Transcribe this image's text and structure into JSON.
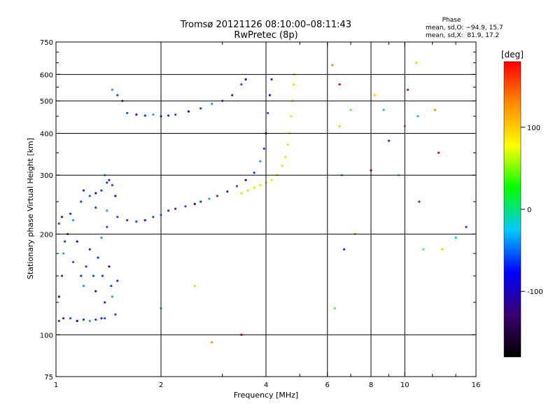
{
  "chart_data": {
    "type": "scatter",
    "title": "Tromsø 20121126 08:10:00–08:11:43",
    "subtitle": "RwPretec (8p)",
    "xlabel": "Frequency [MHz]",
    "ylabel": "Stationary phase Virtual Height [km]",
    "x_scale": "log",
    "y_scale": "log",
    "xlim": [
      1,
      16
    ],
    "ylim": [
      75,
      750
    ],
    "x_ticks": [
      1,
      2,
      4,
      6,
      8,
      10,
      16
    ],
    "y_ticks": [
      75,
      100,
      200,
      300,
      400,
      500,
      600,
      750
    ],
    "x_gridlines": [
      2,
      4,
      6,
      8,
      10
    ],
    "y_gridlines": [
      100,
      200,
      300,
      400,
      500,
      600
    ],
    "stats": {
      "heading": "Phase",
      "line_o": "mean, sd,O: −94.9, 15.7",
      "line_x": "mean, sd,X:  81.9, 17.2"
    },
    "colorbar": {
      "label": "[deg]",
      "min": -180,
      "max": 180,
      "ticks": [
        100,
        0,
        -100
      ],
      "colors": [
        "#000000",
        "#3a006e",
        "#0000ff",
        "#00c8ff",
        "#00ff00",
        "#ffff00",
        "#ff8c00",
        "#ff0000"
      ]
    },
    "series": [
      {
        "values": [
          [
            1.02,
            110
          ],
          [
            1.05,
            112
          ],
          [
            1.1,
            112
          ],
          [
            1.15,
            110
          ],
          [
            1.2,
            111
          ],
          [
            1.25,
            110
          ],
          [
            1.3,
            111
          ],
          [
            1.35,
            112
          ],
          [
            1.38,
            112
          ],
          [
            1.02,
            130
          ],
          [
            1.04,
            150
          ],
          [
            1.05,
            175
          ],
          [
            1.06,
            190
          ],
          [
            1.08,
            200
          ],
          [
            1.12,
            165
          ],
          [
            1.15,
            190
          ],
          [
            1.18,
            150
          ],
          [
            1.2,
            140
          ],
          [
            1.22,
            160
          ],
          [
            1.25,
            180
          ],
          [
            1.28,
            150
          ],
          [
            1.3,
            135
          ],
          [
            1.32,
            170
          ],
          [
            1.35,
            195
          ],
          [
            1.36,
            150
          ],
          [
            1.38,
            125
          ],
          [
            1.4,
            210
          ],
          [
            1.42,
            160
          ],
          [
            1.44,
            140
          ],
          [
            1.45,
            130
          ],
          [
            1.48,
            115
          ],
          [
            1.5,
            145
          ],
          [
            1.02,
            215
          ],
          [
            1.04,
            225
          ],
          [
            1.1,
            230
          ],
          [
            1.12,
            220
          ],
          [
            1.18,
            250
          ],
          [
            1.2,
            270
          ],
          [
            1.25,
            260
          ],
          [
            1.3,
            265
          ],
          [
            1.35,
            270
          ],
          [
            1.38,
            300
          ],
          [
            1.4,
            285
          ],
          [
            1.42,
            290
          ],
          [
            1.45,
            280
          ],
          [
            1.48,
            260
          ],
          [
            1.3,
            240
          ],
          [
            1.4,
            235
          ],
          [
            1.5,
            225
          ],
          [
            1.6,
            220
          ],
          [
            1.7,
            218
          ],
          [
            1.8,
            220
          ],
          [
            1.9,
            225
          ],
          [
            2.0,
            228
          ],
          [
            2.1,
            235
          ],
          [
            2.2,
            238
          ],
          [
            2.35,
            242
          ],
          [
            2.5,
            246
          ],
          [
            2.6,
            250
          ],
          [
            2.75,
            255
          ],
          [
            2.9,
            260
          ],
          [
            3.1,
            268
          ],
          [
            3.3,
            278
          ],
          [
            3.5,
            290
          ],
          [
            3.7,
            305
          ],
          [
            3.85,
            330
          ],
          [
            3.95,
            360
          ],
          [
            4.0,
            400
          ],
          [
            4.05,
            460
          ],
          [
            4.1,
            520
          ],
          [
            4.15,
            580
          ],
          [
            1.45,
            540
          ],
          [
            1.5,
            520
          ],
          [
            1.55,
            500
          ],
          [
            1.6,
            460
          ],
          [
            1.7,
            455
          ],
          [
            1.8,
            452
          ],
          [
            1.9,
            455
          ],
          [
            2.0,
            450
          ],
          [
            2.1,
            452
          ],
          [
            2.2,
            455
          ],
          [
            2.4,
            465
          ],
          [
            2.6,
            475
          ],
          [
            2.8,
            490
          ],
          [
            3.0,
            500
          ],
          [
            3.2,
            520
          ],
          [
            3.4,
            560
          ],
          [
            3.5,
            580
          ]
        ]
      },
      {
        "values": [
          [
            3.4,
            265
          ],
          [
            3.55,
            270
          ],
          [
            3.7,
            275
          ],
          [
            3.85,
            280
          ],
          [
            4.0,
            285
          ],
          [
            4.15,
            290
          ],
          [
            4.3,
            300
          ],
          [
            4.45,
            320
          ],
          [
            4.55,
            340
          ],
          [
            4.62,
            370
          ],
          [
            4.67,
            400
          ],
          [
            4.72,
            450
          ],
          [
            4.76,
            500
          ],
          [
            4.8,
            560
          ],
          [
            4.82,
            600
          ]
        ]
      },
      {
        "values": [
          [
            6.2,
            640
          ],
          [
            6.5,
            560
          ],
          [
            6.5,
            420
          ],
          [
            6.6,
            300
          ],
          [
            6.7,
            180
          ],
          [
            7.0,
            470
          ],
          [
            7.2,
            200
          ],
          [
            8.0,
            310
          ],
          [
            8.2,
            520
          ],
          [
            8.7,
            470
          ],
          [
            9.0,
            380
          ],
          [
            9.6,
            300
          ],
          [
            10.0,
            420
          ],
          [
            10.2,
            540
          ],
          [
            10.8,
            650
          ],
          [
            10.9,
            450
          ],
          [
            11.0,
            250
          ],
          [
            11.3,
            180
          ],
          [
            12.2,
            470
          ],
          [
            12.5,
            350
          ],
          [
            12.8,
            180
          ],
          [
            14.0,
            195
          ],
          [
            15.0,
            210
          ],
          [
            6.3,
            120
          ],
          [
            2.8,
            95
          ],
          [
            3.4,
            100
          ],
          [
            2.5,
            140
          ],
          [
            2.0,
            120
          ]
        ]
      }
    ]
  }
}
